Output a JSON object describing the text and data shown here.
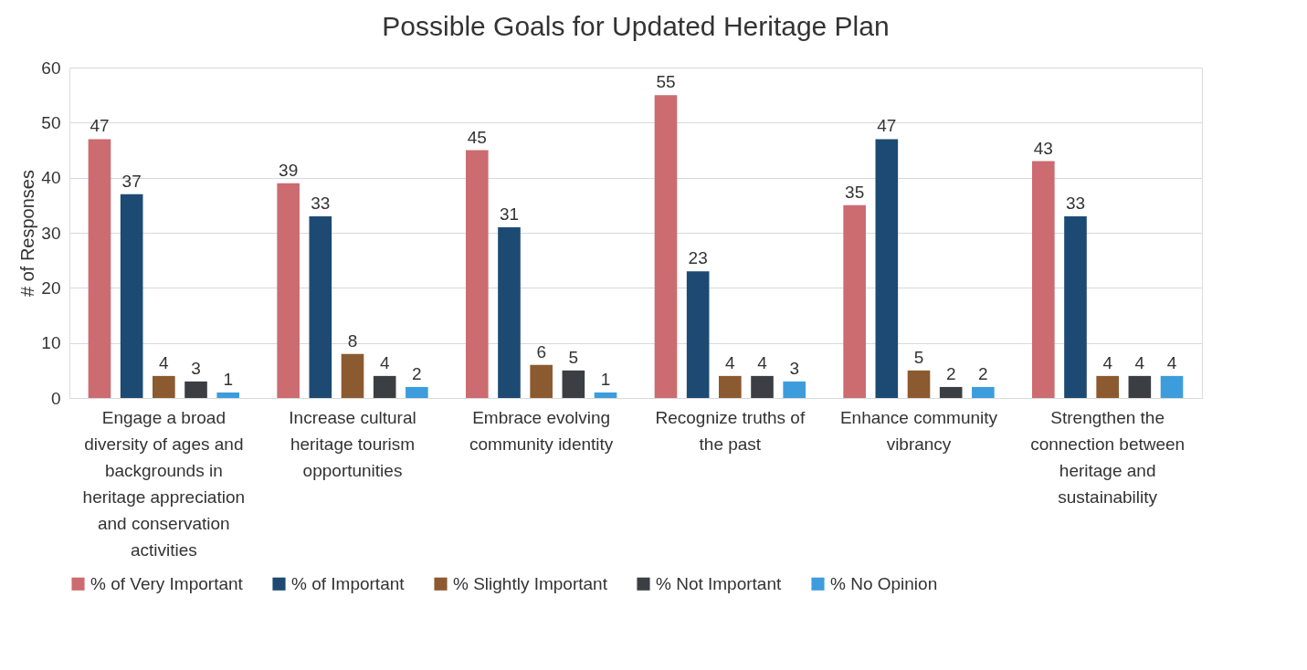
{
  "chart_data": {
    "type": "bar",
    "title": "Possible Goals for Updated Heritage Plan",
    "ylabel": "# of Responses",
    "categories": [
      "Engage a broad diversity of ages and backgrounds in heritage appreciation and conservation activities",
      "Increase cultural heritage tourism opportunities",
      "Embrace evolving community identity",
      "Recognize truths of the past",
      "Enhance community vibrancy",
      "Strengthen the connection between heritage and sustainability"
    ],
    "series": [
      {
        "name": "% of Very Important",
        "color": "#cc6b70",
        "values": [
          47,
          39,
          45,
          55,
          35,
          43
        ]
      },
      {
        "name": "% of Important",
        "color": "#1d4a72",
        "values": [
          37,
          33,
          31,
          23,
          47,
          33
        ]
      },
      {
        "name": "% Slightly Important",
        "color": "#8c5a30",
        "values": [
          4,
          8,
          6,
          4,
          5,
          4
        ]
      },
      {
        "name": "% Not Important",
        "color": "#3b3f44",
        "values": [
          3,
          4,
          5,
          4,
          2,
          4
        ]
      },
      {
        "name": "% No Opinion",
        "color": "#3d9ddc",
        "values": [
          1,
          2,
          1,
          3,
          2,
          4
        ]
      }
    ],
    "ylim": [
      0,
      60
    ],
    "yticks": [
      0,
      10,
      20,
      30,
      40,
      50,
      60
    ],
    "grid": "y",
    "legend": "bottom",
    "data_labels": true
  }
}
